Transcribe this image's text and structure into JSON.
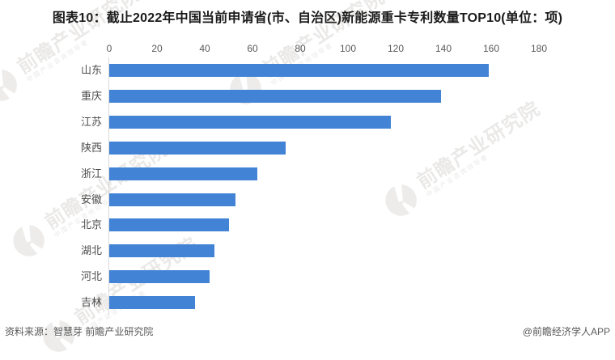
{
  "title": "图表10：截止2022年中国当前申请省(市、自治区)新能源重卡专利数量TOP10(单位：项)",
  "chart_data": {
    "type": "bar",
    "orientation": "horizontal",
    "title": "截止2022年中国当前申请省(市、自治区)新能源重卡专利数量TOP10",
    "unit": "项",
    "categories": [
      "山东",
      "重庆",
      "江苏",
      "陕西",
      "浙江",
      "安徽",
      "北京",
      "湖北",
      "河北",
      "吉林"
    ],
    "values": [
      159,
      139,
      118,
      74,
      62,
      53,
      50,
      44,
      42,
      36
    ],
    "xlim": [
      0,
      180
    ],
    "x_ticks": [
      0,
      20,
      40,
      60,
      80,
      100,
      120,
      140,
      160,
      180
    ],
    "grid": false,
    "legend_shown": false,
    "value_labels_shown": false,
    "bar_color": "#4283d6"
  },
  "footer": {
    "source": "资料来源：智慧芽 前瞻产业研究院",
    "credit": "@前瞻经济学人APP"
  },
  "watermark": {
    "text": "前瞻产业研究院",
    "subtext": "中国产业咨询领导者",
    "logo": "qianzhan-logo"
  },
  "colors": {
    "bar": "#4283d6",
    "axis_line": "#d9d9d9",
    "tick_text": "#595959",
    "category_text": "#4d4d4d",
    "title_text": "#1a1a1a"
  }
}
